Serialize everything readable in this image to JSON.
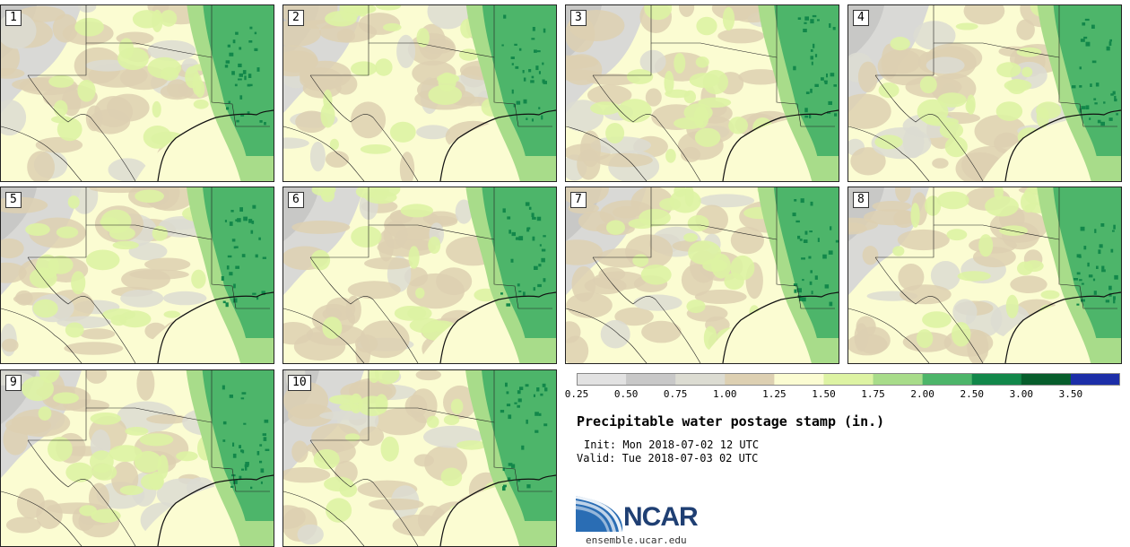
{
  "panels": [
    {
      "label": "1"
    },
    {
      "label": "2"
    },
    {
      "label": "3"
    },
    {
      "label": "4"
    },
    {
      "label": "5"
    },
    {
      "label": "6"
    },
    {
      "label": "7"
    },
    {
      "label": "8"
    },
    {
      "label": "9"
    },
    {
      "label": "10"
    }
  ],
  "colorbar": {
    "colors": [
      "#e2e2e2",
      "#c8c8c8",
      "#dcdcd2",
      "#ddd0b2",
      "#fbfcd2",
      "#ddf3a3",
      "#a8dc8a",
      "#4db56a",
      "#12874a",
      "#075e2c",
      "#1c2ea8"
    ],
    "tick_labels": [
      "0.25",
      "0.50",
      "0.75",
      "1.00",
      "1.25",
      "1.50",
      "1.75",
      "2.00",
      "2.50",
      "3.00",
      "3.50"
    ]
  },
  "title": "Precipitable water postage stamp (in.)",
  "init": "Init: Mon 2018-07-02 12 UTC",
  "valid": "Valid: Tue 2018-07-03 02 UTC",
  "logo": {
    "text": "NCAR",
    "url": "ensemble.ucar.edu"
  }
}
